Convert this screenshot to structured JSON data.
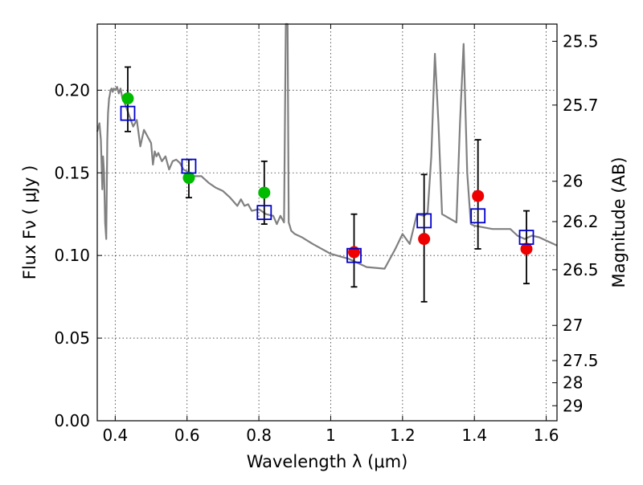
{
  "chart_data": {
    "type": "line",
    "xlabel": "Wavelength  λ (μm)",
    "ylabel": "Flux  Fν  ( μJy )",
    "y2label": "Magnitude (AB)",
    "xlim": [
      0.35,
      1.63
    ],
    "ylim": [
      0.0,
      0.24
    ],
    "grid": true,
    "x_ticks": [
      0.4,
      0.6,
      0.8,
      1.0,
      1.2,
      1.4,
      1.6
    ],
    "x_tick_labels": [
      "0.4",
      "0.6",
      "0.8",
      "1",
      "1.2",
      "1.4",
      "1.6"
    ],
    "y_ticks": [
      0.0,
      0.05,
      0.1,
      0.15,
      0.2
    ],
    "y_tick_labels": [
      "0.00",
      "0.05",
      "0.10",
      "0.15",
      "0.20"
    ],
    "y2_ticks": [
      {
        "label": "25.5",
        "flux": 0.2296
      },
      {
        "label": "25.7",
        "flux": 0.191
      },
      {
        "label": "26",
        "flux": 0.1449
      },
      {
        "label": "26.2",
        "flux": 0.1205
      },
      {
        "label": "26.5",
        "flux": 0.0914
      },
      {
        "label": "27",
        "flux": 0.0577
      },
      {
        "label": "27.5",
        "flux": 0.0364
      },
      {
        "label": "28",
        "flux": 0.023
      },
      {
        "label": "29",
        "flux": 0.0091
      }
    ],
    "series": [
      {
        "kind": "spectrum",
        "color": "#808080",
        "x": [
          0.35,
          0.356,
          0.36,
          0.364,
          0.366,
          0.369,
          0.372,
          0.375,
          0.378,
          0.38,
          0.383,
          0.385,
          0.387,
          0.39,
          0.393,
          0.396,
          0.4,
          0.405,
          0.41,
          0.415,
          0.42,
          0.425,
          0.43,
          0.44,
          0.45,
          0.46,
          0.47,
          0.48,
          0.49,
          0.5,
          0.505,
          0.51,
          0.515,
          0.52,
          0.53,
          0.54,
          0.55,
          0.56,
          0.57,
          0.58,
          0.59,
          0.6,
          0.61,
          0.62,
          0.64,
          0.66,
          0.68,
          0.7,
          0.72,
          0.74,
          0.75,
          0.76,
          0.77,
          0.78,
          0.8,
          0.82,
          0.84,
          0.85,
          0.86,
          0.87,
          0.875,
          0.878,
          0.88,
          0.883,
          0.886,
          0.89,
          0.9,
          0.92,
          0.95,
          1.0,
          1.05,
          1.1,
          1.15,
          1.18,
          1.2,
          1.22,
          1.24,
          1.26,
          1.27,
          1.28,
          1.29,
          1.3,
          1.31,
          1.35,
          1.36,
          1.37,
          1.38,
          1.39,
          1.4,
          1.45,
          1.5,
          1.52,
          1.54,
          1.56,
          1.58,
          1.6,
          1.63
        ],
        "y": [
          0.175,
          0.18,
          0.17,
          0.14,
          0.16,
          0.15,
          0.12,
          0.11,
          0.17,
          0.186,
          0.195,
          0.197,
          0.2,
          0.201,
          0.199,
          0.201,
          0.2,
          0.202,
          0.198,
          0.201,
          0.195,
          0.193,
          0.19,
          0.184,
          0.178,
          0.182,
          0.166,
          0.176,
          0.172,
          0.168,
          0.155,
          0.163,
          0.16,
          0.162,
          0.157,
          0.16,
          0.152,
          0.157,
          0.158,
          0.156,
          0.152,
          0.151,
          0.146,
          0.148,
          0.148,
          0.144,
          0.141,
          0.139,
          0.135,
          0.13,
          0.134,
          0.13,
          0.131,
          0.127,
          0.128,
          0.125,
          0.124,
          0.119,
          0.124,
          0.12,
          0.24,
          0.24,
          0.24,
          0.12,
          0.118,
          0.115,
          0.113,
          0.111,
          0.107,
          0.101,
          0.098,
          0.093,
          0.092,
          0.104,
          0.113,
          0.107,
          0.125,
          0.124,
          0.126,
          0.16,
          0.222,
          0.18,
          0.125,
          0.12,
          0.18,
          0.228,
          0.15,
          0.119,
          0.118,
          0.116,
          0.116,
          0.112,
          0.11,
          0.112,
          0.111,
          0.109,
          0.106
        ]
      },
      {
        "kind": "open-squares",
        "color": "#0000cc",
        "x": [
          0.435,
          0.605,
          0.815,
          1.065,
          1.26,
          1.41,
          1.545
        ],
        "y": [
          0.186,
          0.154,
          0.126,
          0.1,
          0.121,
          0.124,
          0.111
        ]
      },
      {
        "kind": "filled-circles",
        "color": "#00bb00",
        "x": [
          0.435,
          0.605,
          0.815
        ],
        "y": [
          0.195,
          0.147,
          0.138
        ]
      },
      {
        "kind": "filled-circles",
        "color": "#ee0000",
        "x": [
          1.065,
          1.26,
          1.41,
          1.545
        ],
        "y": [
          0.102,
          0.11,
          0.136,
          0.104
        ]
      },
      {
        "kind": "error-bars",
        "color": "#000000",
        "points": [
          {
            "x": 0.435,
            "lo": 0.175,
            "hi": 0.214
          },
          {
            "x": 0.605,
            "lo": 0.135,
            "hi": 0.158
          },
          {
            "x": 0.815,
            "lo": 0.119,
            "hi": 0.157
          },
          {
            "x": 1.065,
            "lo": 0.081,
            "hi": 0.125
          },
          {
            "x": 1.26,
            "lo": 0.072,
            "hi": 0.149
          },
          {
            "x": 1.41,
            "lo": 0.104,
            "hi": 0.17
          },
          {
            "x": 1.545,
            "lo": 0.083,
            "hi": 0.127
          }
        ]
      }
    ]
  }
}
